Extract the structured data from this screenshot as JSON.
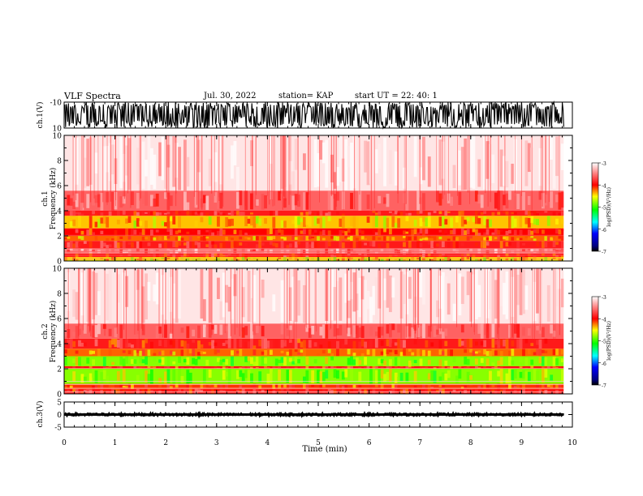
{
  "header": {
    "title": "VLF Spectra",
    "date": "Jul. 30, 2022",
    "station": "station= KAP",
    "start": "start UT = 22: 40: 1"
  },
  "chart_data": [
    {
      "type": "line",
      "panel": "ch1-waveform",
      "ylabel": "ch.1(V)",
      "ylim": [
        -10,
        10
      ],
      "ytick_labels": [
        "10",
        "-10"
      ],
      "xlim": [
        0,
        10
      ],
      "data_extent_x": [
        0,
        9.83
      ],
      "description_values": {
        "typical_min": -10,
        "typical_max": 10
      }
    },
    {
      "type": "heatmap",
      "panel": "ch1-spectrogram",
      "ylabel": "ch.1 Frequency (kHz)",
      "ylim": [
        0,
        10
      ],
      "yticks": [
        0,
        2,
        4,
        6,
        8,
        10
      ],
      "xlim": [
        0,
        10
      ],
      "data_extent_x": [
        0,
        9.83
      ],
      "bands": [
        {
          "from": 0,
          "to": 0.3,
          "level": -4.5
        },
        {
          "from": 0.3,
          "to": 0.6,
          "level": -3.9
        },
        {
          "from": 0.6,
          "to": 1.0,
          "level": -3.5
        },
        {
          "from": 1.0,
          "to": 1.6,
          "level": -3.9
        },
        {
          "from": 1.6,
          "to": 2.0,
          "level": -4.2
        },
        {
          "from": 2.0,
          "to": 2.6,
          "level": -4.0
        },
        {
          "from": 2.6,
          "to": 3.6,
          "level": -4.4
        },
        {
          "from": 3.6,
          "to": 4.0,
          "level": -3.9
        },
        {
          "from": 4.0,
          "to": 5.6,
          "level": -3.6
        },
        {
          "from": 5.6,
          "to": 10.0,
          "level": -3.1
        }
      ],
      "colorbar": {
        "label": "log(PSD)(V²/Hz)",
        "range": [
          -7,
          -3
        ],
        "ticks": [
          -3,
          -4,
          -5,
          -6,
          -7
        ]
      }
    },
    {
      "type": "heatmap",
      "panel": "ch2-spectrogram",
      "ylabel": "ch.2 Frequency (kHz)",
      "ylim": [
        0,
        10
      ],
      "yticks": [
        0,
        2,
        4,
        6,
        8,
        10
      ],
      "xlim": [
        0,
        10
      ],
      "data_extent_x": [
        0,
        9.83
      ],
      "bands": [
        {
          "from": 0,
          "to": 0.4,
          "level": -3.9
        },
        {
          "from": 0.4,
          "to": 0.8,
          "level": -4.1
        },
        {
          "from": 0.8,
          "to": 2.0,
          "level": -4.8
        },
        {
          "from": 2.0,
          "to": 2.2,
          "level": -4.0
        },
        {
          "from": 2.2,
          "to": 3.0,
          "level": -4.8
        },
        {
          "from": 3.0,
          "to": 3.6,
          "level": -4.2
        },
        {
          "from": 3.6,
          "to": 4.4,
          "level": -3.9
        },
        {
          "from": 4.4,
          "to": 5.6,
          "level": -3.6
        },
        {
          "from": 5.6,
          "to": 10.0,
          "level": -3.1
        }
      ],
      "colorbar": {
        "label": "log(PSD)(V²/Hz)",
        "range": [
          -7,
          -3
        ],
        "ticks": [
          -3,
          -4,
          -5,
          -6,
          -7
        ]
      }
    },
    {
      "type": "line",
      "panel": "ch3-waveform",
      "ylabel": "ch.3(V)",
      "ylim": [
        -5,
        5
      ],
      "yticks": [
        -5,
        0,
        5
      ],
      "ytick_labels": [
        "-5",
        "0",
        "5"
      ],
      "xlim": [
        0,
        10
      ],
      "data_extent_x": [
        0,
        9.83
      ],
      "description_values": {
        "typical_min": -0.4,
        "typical_max": 0.4
      }
    }
  ],
  "xaxis": {
    "label": "Time (min)",
    "ticks": [
      0,
      1,
      2,
      3,
      4,
      5,
      6,
      7,
      8,
      9,
      10
    ],
    "tick_labels": [
      "0",
      "1",
      "2",
      "3",
      "4",
      "5",
      "6",
      "7",
      "8",
      "9",
      "10"
    ]
  },
  "colors": {
    "axis": "#000000",
    "background": "#ffffff"
  }
}
